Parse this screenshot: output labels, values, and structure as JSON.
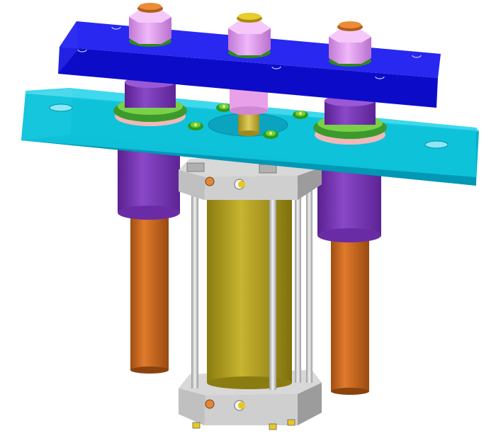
{
  "figure": {
    "description_visible_text": "",
    "parts": [
      {
        "id": "top-plate",
        "color": "#1010D8"
      },
      {
        "id": "bottom-plate",
        "color": "#00BCD8"
      },
      {
        "id": "nut-left",
        "color": "#E4A0F0"
      },
      {
        "id": "nut-center",
        "color": "#E4A0F0"
      },
      {
        "id": "nut-right",
        "color": "#E4A0F0"
      },
      {
        "id": "bolt-cap-copper",
        "color": "#E08838"
      },
      {
        "id": "bolt-cap-brass",
        "color": "#E0C020"
      },
      {
        "id": "washer",
        "color": "#3C8C2C"
      },
      {
        "id": "post-sleeve",
        "color": "#7E3CB4"
      },
      {
        "id": "copper-rod",
        "color": "#C8641C"
      },
      {
        "id": "cylinder-barrel",
        "color": "#B0A020"
      },
      {
        "id": "cylinder-head",
        "color": "#C8C8C8"
      },
      {
        "id": "tie-rod",
        "color": "#D0D0D0"
      },
      {
        "id": "piston-rod",
        "color": "#C8B43C"
      }
    ]
  }
}
